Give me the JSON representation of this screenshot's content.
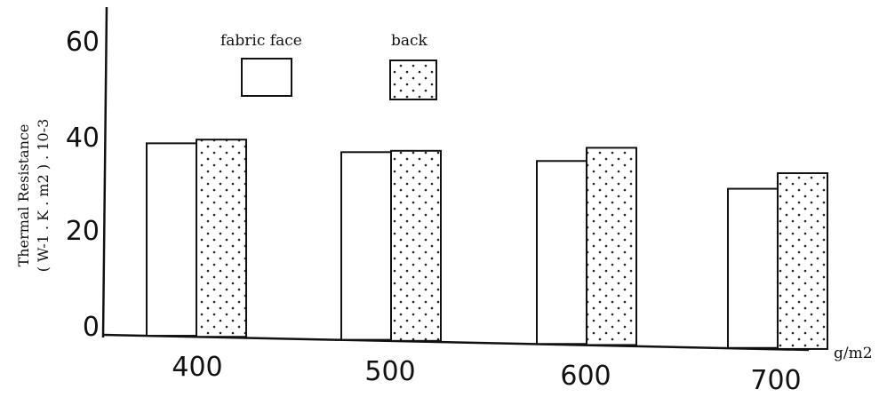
{
  "chart_data": {
    "type": "bar",
    "categories": [
      "400",
      "500",
      "600",
      "700"
    ],
    "series": [
      {
        "name": "fabric face",
        "values": [
          40.5,
          39.5,
          38.5,
          33.5
        ],
        "pattern": "plain"
      },
      {
        "name": "back",
        "values": [
          41.5,
          40.0,
          41.5,
          37.0
        ],
        "pattern": "dotted"
      }
    ],
    "yticks": [
      "0",
      "20",
      "40",
      "60"
    ],
    "ylim": [
      0,
      65
    ],
    "ylabel_line1": "Thermal Resistance",
    "ylabel_line2": "( W-1 . K . m2 ) . 10-3",
    "xunit": "g/m2",
    "legend_position": "top-center",
    "colors": {
      "bar_stroke": "#111111",
      "dots": "#222222",
      "axis": "#111111"
    }
  }
}
